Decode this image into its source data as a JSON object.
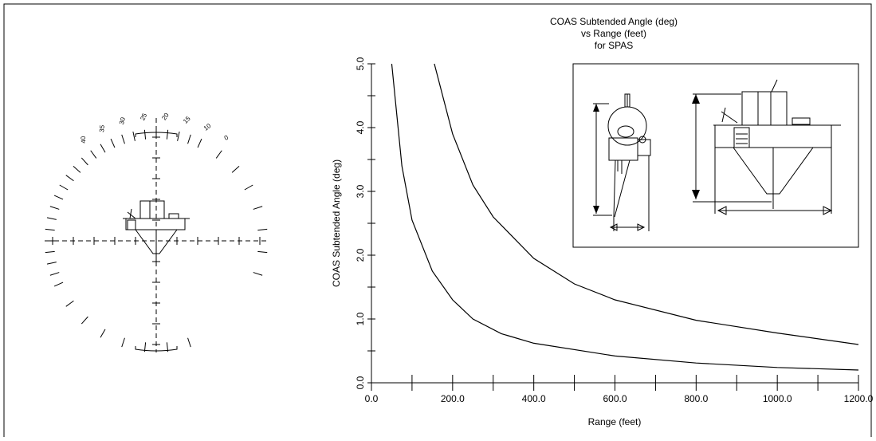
{
  "chart_data": {
    "type": "line",
    "title": [
      "COAS Subtended Angle (deg)",
      "vs Range (feet)",
      "for SPAS"
    ],
    "xlabel": "Range (feet)",
    "ylabel": "COAS Subtended Angle (deg)",
    "xlim": [
      0,
      1200
    ],
    "ylim": [
      0,
      5
    ],
    "xticks": [
      {
        "value": 0,
        "label": "0.0"
      },
      {
        "value": 200,
        "label": "200.0"
      },
      {
        "value": 400,
        "label": "400.0"
      },
      {
        "value": 600,
        "label": "600.0"
      },
      {
        "value": 800,
        "label": "800.0"
      },
      {
        "value": 1000,
        "label": "1000.0"
      },
      {
        "value": 1200,
        "label": "1200.0"
      }
    ],
    "xminor": 100,
    "yticks": [
      {
        "value": 0,
        "label": "0.0"
      },
      {
        "value": 1,
        "label": "1.0"
      },
      {
        "value": 2,
        "label": "2.0"
      },
      {
        "value": 3,
        "label": "3.0"
      },
      {
        "value": 4,
        "label": "4.0"
      },
      {
        "value": 5,
        "label": "5.0"
      }
    ],
    "yminor": 0.5,
    "series": [
      {
        "color": "#000000",
        "x": [
          50,
          75,
          100,
          150,
          200,
          250,
          320,
          400,
          600,
          800,
          1000,
          1200
        ],
        "values": [
          5.0,
          3.4,
          2.55,
          1.75,
          1.3,
          1.0,
          0.77,
          0.62,
          0.42,
          0.31,
          0.24,
          0.2
        ]
      },
      {
        "color": "#000000",
        "x": [
          155,
          200,
          250,
          300,
          400,
          500,
          600,
          800,
          1000,
          1200
        ],
        "values": [
          5.0,
          3.9,
          3.1,
          2.6,
          1.95,
          1.55,
          1.3,
          0.98,
          0.78,
          0.6
        ]
      }
    ]
  },
  "reticle": {
    "scale_labels": [
      "40",
      "35",
      "30",
      "25",
      "20",
      "15",
      "10",
      "0"
    ]
  }
}
